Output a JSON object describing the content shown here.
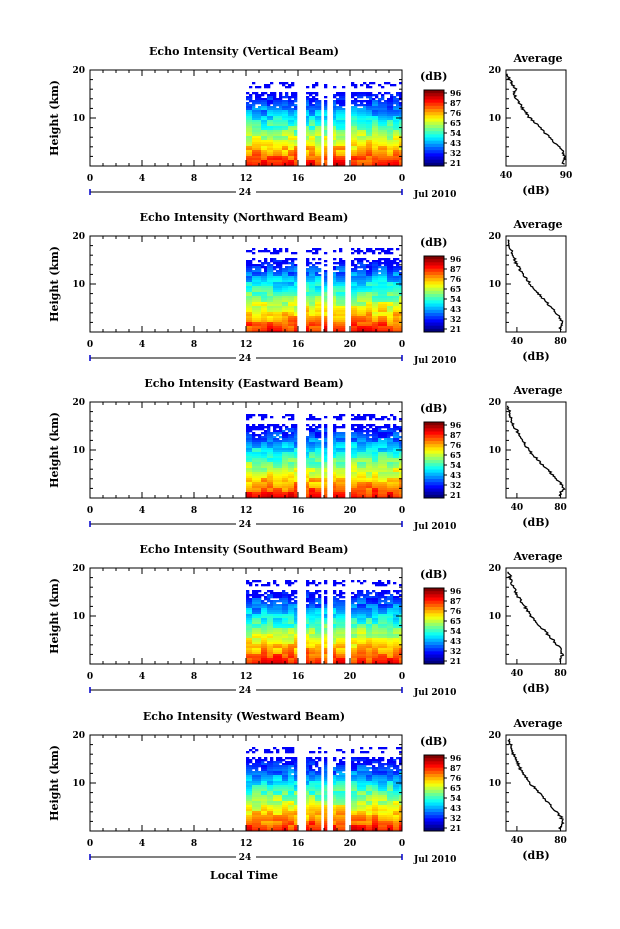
{
  "figure": {
    "xlabel_bottom": "Local Time"
  },
  "chart_data": [
    {
      "type": "heatmap",
      "title": "Echo Intensity (Vertical Beam)",
      "ylabel": "Height (km)",
      "yticks": [
        "20",
        "10"
      ],
      "ylim": [
        0,
        20
      ],
      "xticks": [
        "0",
        "4",
        "8",
        "12",
        "16",
        "20",
        "0"
      ],
      "xlim": [
        0,
        24
      ],
      "date_label": "24",
      "month_label": "Jul 2010",
      "data_start_hour": 12,
      "data_gaps_hours": [
        [
          15.9,
          16.4
        ],
        [
          17.7,
          17.95
        ],
        [
          18.25,
          18.55
        ],
        [
          19.5,
          19.9
        ]
      ],
      "colorbar": {
        "label": "(dB)",
        "ticks": [
          "96",
          "87",
          "76",
          "65",
          "54",
          "43",
          "32",
          "21"
        ],
        "min": 21,
        "max": 96
      },
      "profile": {
        "title": "Average",
        "xlabel": "(dB)",
        "xticks": [
          "40",
          "90"
        ],
        "xlim": [
          40,
          90
        ],
        "yticks": [
          "20",
          "10"
        ],
        "heights_km": [
          1,
          2,
          3,
          4,
          5,
          6,
          7,
          8,
          9,
          10,
          11,
          12,
          13,
          14,
          15,
          16,
          17,
          18,
          19
        ],
        "values_db": [
          88,
          89,
          87,
          84,
          80,
          76,
          72,
          68,
          64,
          60,
          57,
          54,
          51,
          49,
          47,
          48,
          45,
          43,
          41
        ]
      }
    },
    {
      "type": "heatmap",
      "title": "Echo Intensity (Northward Beam)",
      "ylabel": "Height (km)",
      "yticks": [
        "20",
        "10"
      ],
      "ylim": [
        0,
        20
      ],
      "xticks": [
        "0",
        "4",
        "8",
        "12",
        "16",
        "20",
        "0"
      ],
      "xlim": [
        0,
        24
      ],
      "date_label": "24",
      "month_label": "Jul 2010",
      "data_start_hour": 12,
      "data_gaps_hours": [
        [
          15.9,
          16.4
        ],
        [
          17.7,
          17.95
        ],
        [
          18.25,
          18.55
        ],
        [
          19.5,
          19.9
        ]
      ],
      "colorbar": {
        "label": "(dB)",
        "ticks": [
          "96",
          "87",
          "76",
          "65",
          "54",
          "43",
          "32",
          "21"
        ],
        "min": 21,
        "max": 96
      },
      "profile": {
        "title": "Average",
        "xlabel": "(dB)",
        "xticks": [
          "40",
          "80"
        ],
        "xlim": [
          30,
          85
        ],
        "yticks": [
          "20",
          "10"
        ],
        "heights_km": [
          1,
          2,
          3,
          4,
          5,
          6,
          7,
          8,
          9,
          10,
          11,
          12,
          13,
          14,
          15,
          16,
          17,
          18,
          19
        ],
        "values_db": [
          80,
          82,
          79,
          76,
          72,
          68,
          64,
          60,
          56,
          52,
          49,
          46,
          43,
          40,
          38,
          36,
          35,
          33,
          32
        ]
      }
    },
    {
      "type": "heatmap",
      "title": "Echo Intensity (Eastward Beam)",
      "ylabel": "Height (km)",
      "yticks": [
        "20",
        "10"
      ],
      "ylim": [
        0,
        20
      ],
      "xticks": [
        "0",
        "4",
        "8",
        "12",
        "16",
        "20",
        "0"
      ],
      "xlim": [
        0,
        24
      ],
      "date_label": "24",
      "month_label": "Jul 2010",
      "data_start_hour": 12,
      "data_gaps_hours": [
        [
          15.9,
          16.4
        ],
        [
          17.7,
          17.95
        ],
        [
          18.25,
          18.55
        ],
        [
          19.5,
          19.9
        ]
      ],
      "colorbar": {
        "label": "(dB)",
        "ticks": [
          "96",
          "87",
          "76",
          "65",
          "54",
          "43",
          "32",
          "21"
        ],
        "min": 21,
        "max": 96
      },
      "profile": {
        "title": "Average",
        "xlabel": "(dB)",
        "xticks": [
          "40",
          "80"
        ],
        "xlim": [
          30,
          85
        ],
        "yticks": [
          "20",
          "10"
        ],
        "heights_km": [
          1,
          2,
          3,
          4,
          5,
          6,
          7,
          8,
          9,
          10,
          11,
          12,
          13,
          14,
          15,
          16,
          17,
          18,
          19
        ],
        "values_db": [
          80,
          83,
          80,
          76,
          72,
          68,
          63,
          59,
          55,
          51,
          48,
          45,
          42,
          40,
          37,
          35,
          34,
          33,
          32
        ]
      }
    },
    {
      "type": "heatmap",
      "title": "Echo Intensity (Southward Beam)",
      "ylabel": "Height (km)",
      "yticks": [
        "20",
        "10"
      ],
      "ylim": [
        0,
        20
      ],
      "xticks": [
        "0",
        "4",
        "8",
        "12",
        "16",
        "20",
        "0"
      ],
      "xlim": [
        0,
        24
      ],
      "date_label": "24",
      "month_label": "Jul 2010",
      "data_start_hour": 12,
      "data_gaps_hours": [
        [
          15.9,
          16.4
        ],
        [
          17.7,
          17.95
        ],
        [
          18.25,
          18.55
        ],
        [
          19.5,
          19.9
        ]
      ],
      "colorbar": {
        "label": "(dB)",
        "ticks": [
          "96",
          "87",
          "76",
          "65",
          "54",
          "43",
          "32",
          "21"
        ],
        "min": 21,
        "max": 96
      },
      "profile": {
        "title": "Average",
        "xlabel": "(dB)",
        "xticks": [
          "40",
          "80"
        ],
        "xlim": [
          30,
          85
        ],
        "yticks": [
          "20",
          "10"
        ],
        "heights_km": [
          1,
          2,
          3,
          4,
          5,
          6,
          7,
          8,
          9,
          10,
          11,
          12,
          13,
          14,
          15,
          16,
          17,
          18,
          19
        ],
        "values_db": [
          80,
          82,
          80,
          77,
          73,
          69,
          65,
          61,
          57,
          53,
          50,
          47,
          44,
          41,
          39,
          37,
          35,
          34,
          33
        ]
      }
    },
    {
      "type": "heatmap",
      "title": "Echo Intensity (Westward Beam)",
      "ylabel": "Height (km)",
      "yticks": [
        "20",
        "10"
      ],
      "ylim": [
        0,
        20
      ],
      "xticks": [
        "0",
        "4",
        "8",
        "12",
        "16",
        "20",
        "0"
      ],
      "xlim": [
        0,
        24
      ],
      "date_label": "24",
      "month_label": "Jul 2010",
      "data_start_hour": 12,
      "data_gaps_hours": [
        [
          15.9,
          16.4
        ],
        [
          17.7,
          17.95
        ],
        [
          18.25,
          18.55
        ],
        [
          19.5,
          19.9
        ]
      ],
      "colorbar": {
        "label": "(dB)",
        "ticks": [
          "96",
          "87",
          "76",
          "65",
          "54",
          "43",
          "32",
          "21"
        ],
        "min": 21,
        "max": 96
      },
      "profile": {
        "title": "Average",
        "xlabel": "(dB)",
        "xticks": [
          "40",
          "80"
        ],
        "xlim": [
          30,
          85
        ],
        "yticks": [
          "20",
          "10"
        ],
        "heights_km": [
          1,
          2,
          3,
          4,
          5,
          6,
          7,
          8,
          9,
          10,
          11,
          12,
          13,
          14,
          15,
          16,
          17,
          18,
          19
        ],
        "values_db": [
          80,
          83,
          80,
          76,
          72,
          68,
          64,
          60,
          56,
          52,
          49,
          46,
          43,
          41,
          39,
          37,
          35,
          34,
          33
        ]
      }
    }
  ]
}
